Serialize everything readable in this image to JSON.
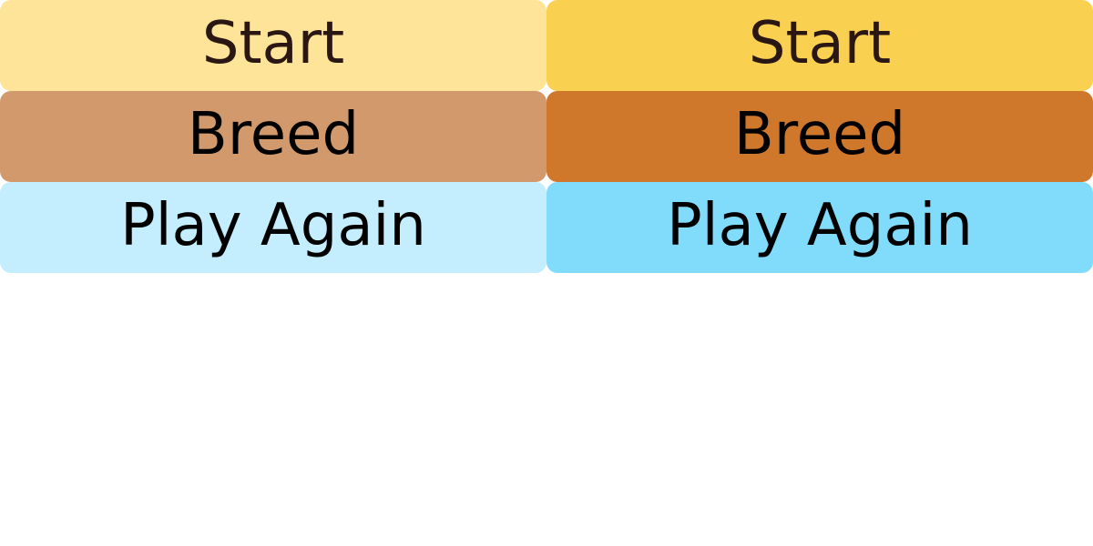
{
  "buttons": {
    "normal": {
      "start": {
        "label": "Start",
        "bg": "#FDE499",
        "text_color": "#2A1612"
      },
      "breed": {
        "label": "Breed",
        "bg": "#D29A6C",
        "text_color": "#000000"
      },
      "play_again": {
        "label": "Play Again",
        "bg": "#C4EEFD",
        "text_color": "#000000"
      }
    },
    "hover": {
      "start": {
        "label": "Start",
        "bg": "#F9D050",
        "text_color": "#2A1612"
      },
      "breed": {
        "label": "Breed",
        "bg": "#CF772A",
        "text_color": "#000000"
      },
      "play_again": {
        "label": "Play Again",
        "bg": "#81DBFB",
        "text_color": "#000000"
      }
    }
  }
}
